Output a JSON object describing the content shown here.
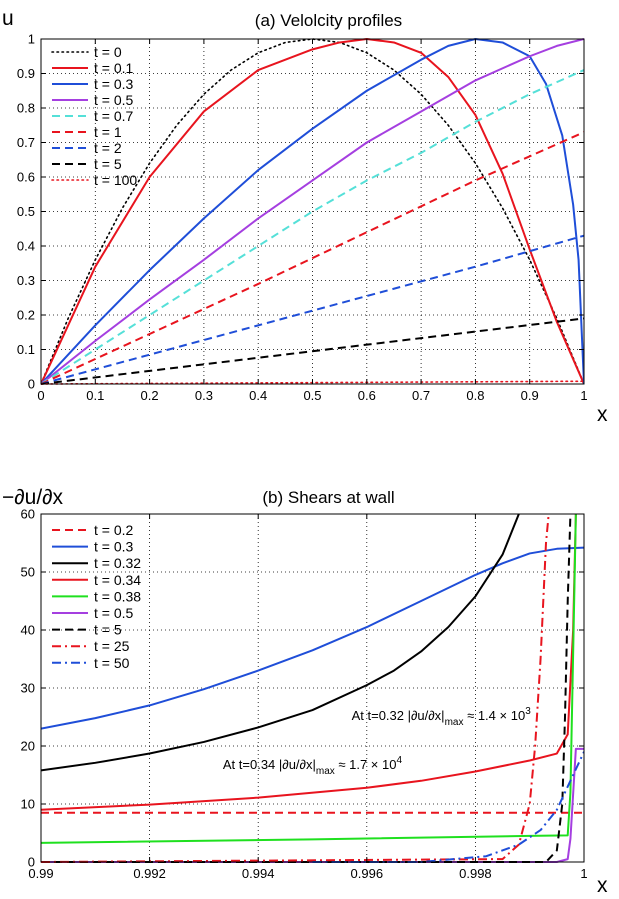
{
  "figure": {
    "aria_label": "Velocity profiles and shears at wall"
  },
  "chart_data": [
    {
      "id": "a",
      "type": "line",
      "title": "(a) Velolcity profiles",
      "xlabel": "x",
      "ylabel": "u",
      "xlim": [
        0,
        1
      ],
      "ylim": [
        0,
        1
      ],
      "xticks": [
        0,
        0.1,
        0.2,
        0.3,
        0.4,
        0.5,
        0.6,
        0.7,
        0.8,
        0.9,
        1
      ],
      "xtick_labels": [
        "0",
        "0.1",
        "0.2",
        "0.3",
        "0.4",
        "0.5",
        "0.6",
        "0.7",
        "0.8",
        "0.9",
        "1"
      ],
      "yticks": [
        0,
        0.1,
        0.2,
        0.3,
        0.4,
        0.5,
        0.6,
        0.7,
        0.8,
        0.9,
        1
      ],
      "ytick_labels": [
        "0",
        "0.1",
        "0.2",
        "0.3",
        "0.4",
        "0.5",
        "0.6",
        "0.7",
        "0.8",
        "0.9",
        "1"
      ],
      "grid": true,
      "legend_position": "top-left",
      "series": [
        {
          "name": "t = 0",
          "color": "#000000",
          "style": "dotted",
          "x": [
            0,
            0.05,
            0.1,
            0.15,
            0.2,
            0.25,
            0.3,
            0.35,
            0.4,
            0.45,
            0.5,
            0.55,
            0.6,
            0.65,
            0.7,
            0.75,
            0.8,
            0.85,
            0.9,
            0.95,
            1
          ],
          "y": [
            0,
            0.19,
            0.36,
            0.51,
            0.64,
            0.75,
            0.84,
            0.91,
            0.96,
            0.99,
            1,
            0.99,
            0.96,
            0.91,
            0.84,
            0.75,
            0.64,
            0.51,
            0.36,
            0.19,
            0
          ]
        },
        {
          "name": "t = 0.1",
          "color": "#e8141e",
          "style": "solid",
          "x": [
            0,
            0.1,
            0.2,
            0.3,
            0.4,
            0.5,
            0.55,
            0.6,
            0.65,
            0.7,
            0.75,
            0.8,
            0.85,
            0.9,
            0.95,
            1
          ],
          "y": [
            0,
            0.34,
            0.6,
            0.79,
            0.91,
            0.97,
            0.99,
            1,
            0.99,
            0.96,
            0.89,
            0.78,
            0.61,
            0.39,
            0.18,
            0
          ]
        },
        {
          "name": "t = 0.3",
          "color": "#1f4ed8",
          "style": "solid",
          "x": [
            0,
            0.1,
            0.2,
            0.3,
            0.4,
            0.5,
            0.6,
            0.7,
            0.75,
            0.8,
            0.85,
            0.9,
            0.93,
            0.96,
            0.98,
            0.99,
            1
          ],
          "y": [
            0,
            0.17,
            0.33,
            0.48,
            0.62,
            0.74,
            0.85,
            0.94,
            0.98,
            1,
            0.99,
            0.95,
            0.87,
            0.72,
            0.52,
            0.36,
            0
          ]
        },
        {
          "name": "t = 0.5",
          "color": "#a53fe0",
          "style": "solid",
          "x": [
            0,
            0.1,
            0.2,
            0.3,
            0.4,
            0.5,
            0.6,
            0.7,
            0.8,
            0.9,
            0.95,
            1
          ],
          "y": [
            0,
            0.125,
            0.245,
            0.36,
            0.48,
            0.59,
            0.7,
            0.79,
            0.88,
            0.95,
            0.98,
            1
          ]
        },
        {
          "name": "t = 0.7",
          "color": "#55e0d8",
          "style": "dashed",
          "x": [
            0,
            0.1,
            0.2,
            0.3,
            0.4,
            0.5,
            0.6,
            0.7,
            0.8,
            0.9,
            1
          ],
          "y": [
            0,
            0.1,
            0.2,
            0.3,
            0.4,
            0.5,
            0.59,
            0.67,
            0.76,
            0.84,
            0.91
          ]
        },
        {
          "name": "t = 1",
          "color": "#e8141e",
          "style": "dashed",
          "x": [
            0,
            0.2,
            0.4,
            0.6,
            0.8,
            1
          ],
          "y": [
            0,
            0.145,
            0.29,
            0.44,
            0.59,
            0.73
          ]
        },
        {
          "name": "t = 2",
          "color": "#1f4ed8",
          "style": "dashed",
          "x": [
            0,
            0.2,
            0.4,
            0.6,
            0.8,
            1
          ],
          "y": [
            0,
            0.085,
            0.17,
            0.255,
            0.34,
            0.43
          ]
        },
        {
          "name": "t = 5",
          "color": "#000000",
          "style": "dashed",
          "x": [
            0,
            0.2,
            0.4,
            0.6,
            0.8,
            1
          ],
          "y": [
            0,
            0.038,
            0.076,
            0.114,
            0.152,
            0.19
          ]
        },
        {
          "name": "t = 100",
          "color": "#e8141e",
          "style": "dotted",
          "x": [
            0,
            0.5,
            1
          ],
          "y": [
            0,
            0.004,
            0.008
          ]
        }
      ]
    },
    {
      "id": "b",
      "type": "line",
      "title": "(b) Shears at wall",
      "xlabel": "x",
      "ylabel": "−∂u/∂x",
      "xlim": [
        0.99,
        1
      ],
      "ylim": [
        0,
        60
      ],
      "xticks": [
        0.99,
        0.992,
        0.994,
        0.996,
        0.998,
        1
      ],
      "xtick_labels": [
        "0.99",
        "0.992",
        "0.994",
        "0.996",
        "0.998",
        "1"
      ],
      "yticks": [
        0,
        10,
        20,
        30,
        40,
        50,
        60
      ],
      "ytick_labels": [
        "0",
        "10",
        "20",
        "30",
        "40",
        "50",
        "60"
      ],
      "grid": true,
      "legend_position": "top-left",
      "annotations": [
        {
          "text_pre": "At t=0.32 |∂u/∂x|",
          "sub": "max",
          "text_post": " ≈ 1.4 × 10",
          "sup": "3",
          "at_x": 0.99572,
          "at_y": 24.5
        },
        {
          "text_pre": "At t=0.34 |∂u/∂x|",
          "sub": "max",
          "text_post": " ≈ 1.7 × 10",
          "sup": "4",
          "at_x": 0.99335,
          "at_y": 16.0
        }
      ],
      "series": [
        {
          "name": "t = 0.2",
          "color": "#e8141e",
          "style": "dashed",
          "x": [
            0.99,
            1
          ],
          "y": [
            8.5,
            8.5
          ]
        },
        {
          "name": "t = 0.3",
          "color": "#1f4ed8",
          "style": "solid",
          "x": [
            0.99,
            0.991,
            0.992,
            0.993,
            0.994,
            0.995,
            0.996,
            0.997,
            0.998,
            0.9985,
            0.999,
            0.9995,
            1
          ],
          "y": [
            23,
            24.8,
            27,
            29.8,
            33,
            36.5,
            40.5,
            45,
            49.5,
            51.5,
            53.2,
            54,
            54.2
          ]
        },
        {
          "name": "t = 0.32",
          "color": "#000000",
          "style": "solid",
          "x": [
            0.99,
            0.991,
            0.992,
            0.993,
            0.994,
            0.995,
            0.996,
            0.9965,
            0.997,
            0.9975,
            0.998,
            0.9985,
            0.9988
          ],
          "y": [
            15.8,
            17.1,
            18.7,
            20.7,
            23.2,
            26.2,
            30.5,
            33,
            36.3,
            40.5,
            45.8,
            53,
            60
          ]
        },
        {
          "name": "t = 0.34",
          "color": "#e8141e",
          "style": "solid",
          "x": [
            0.99,
            0.992,
            0.994,
            0.996,
            0.997,
            0.998,
            0.999,
            0.9995,
            0.9997,
            0.9998,
            0.99985
          ],
          "y": [
            9,
            9.9,
            11.1,
            12.8,
            14,
            15.6,
            17.5,
            18.7,
            22,
            40,
            60
          ]
        },
        {
          "name": "t = 0.38",
          "color": "#1fe01f",
          "style": "solid",
          "x": [
            0.99,
            0.995,
            0.999,
            0.9997,
            0.99975,
            0.99985
          ],
          "y": [
            3.3,
            3.9,
            4.5,
            4.6,
            12,
            60
          ]
        },
        {
          "name": "t = 0.5",
          "color": "#a53fe0",
          "style": "solid",
          "x": [
            0.99,
            0.9995,
            0.9997,
            0.99975,
            0.99985,
            0.9999,
            1
          ],
          "y": [
            0,
            0,
            0.5,
            4,
            19.5,
            19.5,
            19.5
          ]
        },
        {
          "name": "t = 5",
          "color": "#000000",
          "style": "dashed",
          "x": [
            0.99,
            0.9993,
            0.9995,
            0.9996,
            0.99965,
            0.9997,
            0.99975
          ],
          "y": [
            0,
            0,
            2,
            10,
            25,
            45,
            60
          ]
        },
        {
          "name": "t = 25",
          "color": "#e8141e",
          "style": "dashdot",
          "x": [
            0.99,
            0.9985,
            0.9988,
            0.999,
            0.9991,
            0.9992,
            0.9993,
            0.99935
          ],
          "y": [
            0,
            0.5,
            3,
            10,
            20,
            35,
            55,
            60
          ]
        },
        {
          "name": "t = 50",
          "color": "#1f4ed8",
          "style": "dashdot",
          "x": [
            0.995,
            0.997,
            0.9982,
            0.9988,
            0.9992,
            0.9995,
            0.9997,
            0.9999,
            1
          ],
          "y": [
            0,
            0,
            1,
            3,
            5.5,
            9,
            13,
            17,
            19
          ]
        }
      ]
    }
  ]
}
